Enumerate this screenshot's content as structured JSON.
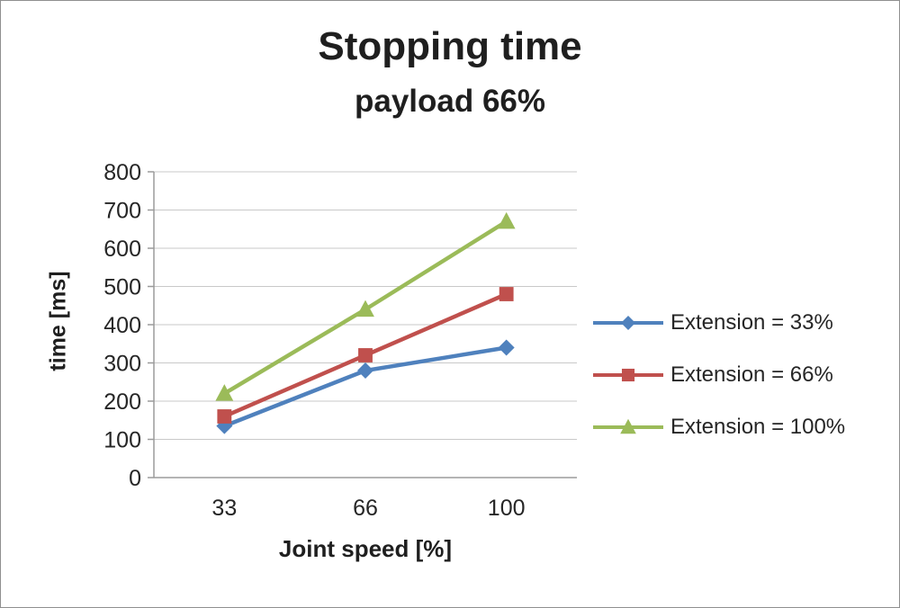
{
  "chart_data": {
    "type": "line",
    "title": "Stopping time",
    "subtitle": "payload 66%",
    "xlabel": "Joint speed [%]",
    "ylabel": "time [ms]",
    "categories": [
      "33",
      "66",
      "100"
    ],
    "ylim": [
      0,
      800
    ],
    "ytick_step": 100,
    "grid": true,
    "legend_position": "right",
    "colors": {
      "axis": "#9b9b9b",
      "gridline": "#c9c9c9",
      "text": "#262626"
    },
    "series": [
      {
        "name": "Extension = 33%",
        "color": "#4f81bd",
        "marker": "diamond",
        "values": [
          135,
          280,
          340
        ]
      },
      {
        "name": "Extension = 66%",
        "color": "#c0504d",
        "marker": "square",
        "values": [
          160,
          320,
          480
        ]
      },
      {
        "name": "Extension = 100%",
        "color": "#9bbb59",
        "marker": "triangle",
        "values": [
          220,
          440,
          670
        ]
      }
    ]
  }
}
